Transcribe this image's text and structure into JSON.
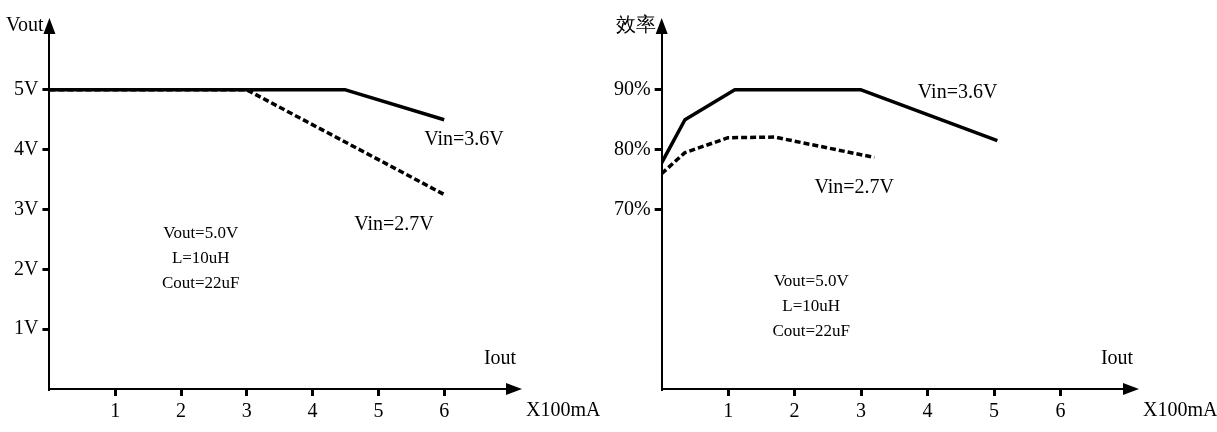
{
  "chart_data": [
    {
      "type": "line",
      "xlabel": "Iout",
      "ylabel": "Vout",
      "xlim": [
        0,
        7
      ],
      "xticks": [
        1,
        2,
        3,
        4,
        5,
        6
      ],
      "ylim": [
        0,
        6
      ],
      "yticks": [
        {
          "value": 1,
          "label": "1V"
        },
        {
          "value": 2,
          "label": "2V"
        },
        {
          "value": 3,
          "label": "3V"
        },
        {
          "value": 4,
          "label": "4V"
        },
        {
          "value": 5,
          "label": "5V"
        }
      ],
      "grid": false,
      "legend": false,
      "marker": "none",
      "series": [
        {
          "name": "Vin=3.6V",
          "color": "#000000",
          "line_style": "solid",
          "x": [
            0,
            4.5,
            6
          ],
          "values": [
            5,
            5,
            4.5
          ]
        },
        {
          "name": "Vin=2.7V",
          "color": "#000000",
          "line_style": "dashed",
          "x": [
            0,
            3,
            6
          ],
          "values": [
            5,
            5,
            3.25
          ]
        }
      ],
      "annotations": [
        "X100mA",
        "Vout=5.0V",
        "L=10uH",
        "Cout=22uF"
      ]
    },
    {
      "type": "line",
      "xlabel": "Iout",
      "ylabel": "效率",
      "xlim": [
        0,
        7
      ],
      "xticks": [
        1,
        2,
        3,
        4,
        5,
        6
      ],
      "ylim": [
        40,
        100
      ],
      "yticks": [
        {
          "value": 70,
          "label": "70%"
        },
        {
          "value": 80,
          "label": "80%"
        },
        {
          "value": 90,
          "label": "90%"
        }
      ],
      "grid": false,
      "legend": false,
      "marker": "none",
      "series": [
        {
          "name": "Vin=3.6V",
          "color": "#000000",
          "line_style": "solid",
          "x": [
            0,
            0.35,
            1.1,
            3,
            5.05
          ],
          "values": [
            77.8,
            85,
            90,
            90,
            81.5
          ]
        },
        {
          "name": "Vin=2.7V",
          "color": "#000000",
          "line_style": "dashed",
          "x": [
            0,
            0.35,
            1,
            1.7,
            3.2
          ],
          "values": [
            76,
            79.5,
            82,
            82.1,
            78.7
          ]
        }
      ],
      "annotations": [
        "X100mA",
        "Vout=5.0V",
        "L=10uH",
        "Cout=22uF"
      ]
    }
  ]
}
